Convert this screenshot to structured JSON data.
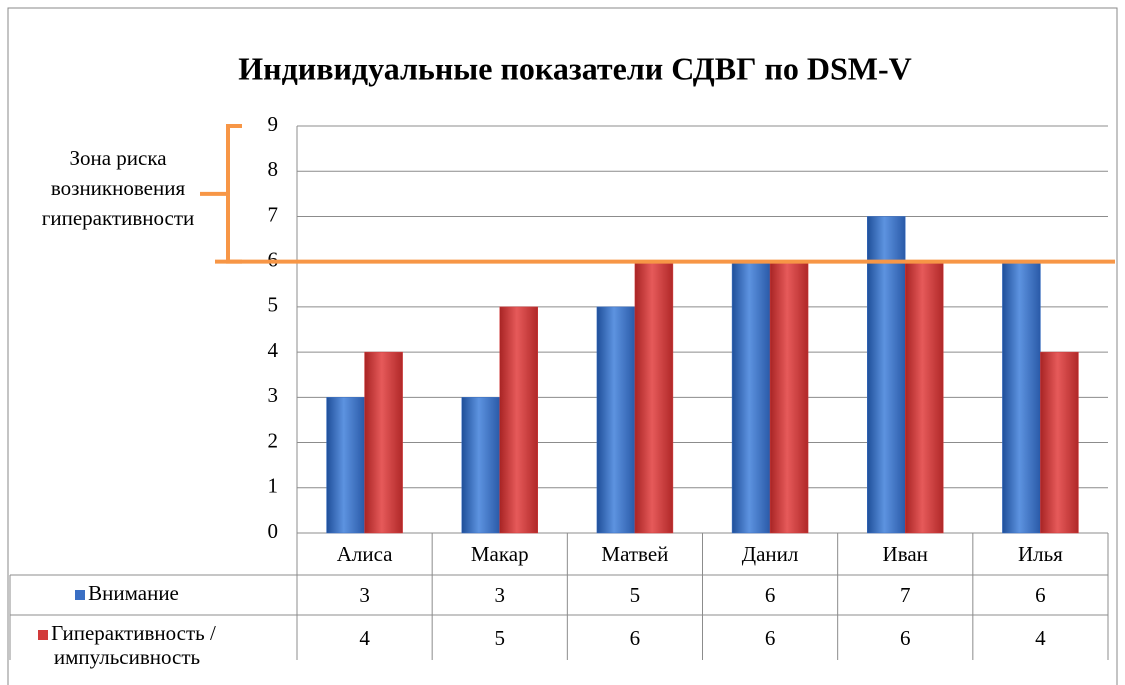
{
  "chart_data": {
    "type": "bar",
    "title": "Индивидуальные показатели СДВГ по DSM-V",
    "categories": [
      "Алиса",
      "Макар",
      "Матвей",
      "Данил",
      "Иван",
      "Илья"
    ],
    "series": [
      {
        "name": "Внимание",
        "color": "#3a6fc4",
        "values": [
          3,
          3,
          5,
          6,
          7,
          6
        ]
      },
      {
        "name": "Гиперактивность / импульсивность",
        "color": "#d23a3a",
        "values": [
          4,
          5,
          6,
          6,
          6,
          4
        ]
      }
    ],
    "ylim": [
      0,
      9
    ],
    "yticks": [
      0,
      1,
      2,
      3,
      4,
      5,
      6,
      7,
      8,
      9
    ],
    "grid": true,
    "threshold": 6,
    "threshold_color": "#f79646",
    "annotation": [
      "Зона риска",
      "возникновения",
      "гиперактивности"
    ],
    "annotation_range": [
      6,
      9
    ]
  }
}
